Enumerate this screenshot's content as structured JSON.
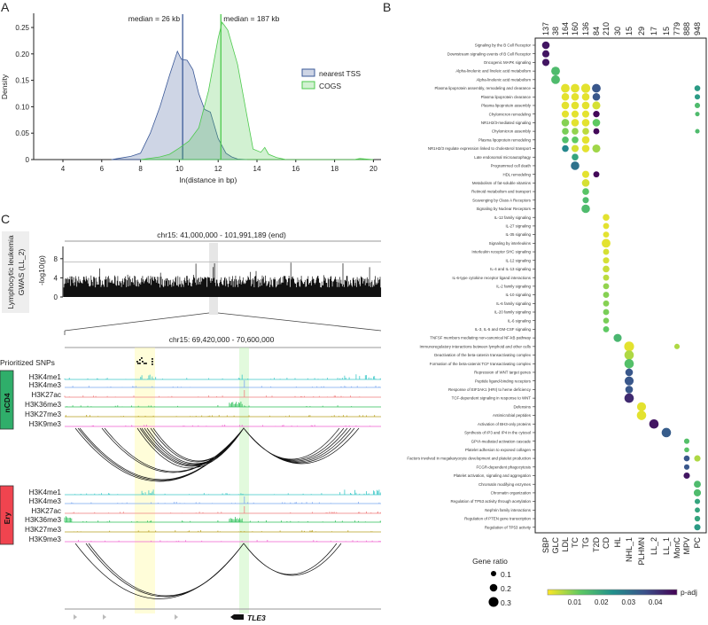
{
  "panels": {
    "a": "A",
    "b": "B",
    "c": "C"
  },
  "chart_data": [
    {
      "type": "area",
      "panel": "A",
      "title": "",
      "xlabel": "ln(distance in bp)",
      "ylabel": "Density",
      "xlim": [
        2.5,
        20
      ],
      "ylim": [
        0,
        0.27
      ],
      "xticks": [
        "4",
        "6",
        "8",
        "10",
        "12",
        "14",
        "16",
        "18",
        "20"
      ],
      "yticks": [
        "0",
        "0.05",
        "0.10",
        "0.15",
        "0.20",
        "0.25"
      ],
      "legend_position": "right",
      "series": [
        {
          "name": "nearest TSS",
          "color": "#3b5998",
          "median_ln": 10.17,
          "median_label": "median = 26 kb",
          "x": [
            6.5,
            7,
            7.5,
            8,
            8.5,
            9,
            9.5,
            9.9,
            10.1,
            10.4,
            10.7,
            11,
            11.3,
            11.6,
            12,
            12.4,
            12.7,
            13,
            13.5
          ],
          "y": [
            0,
            0.003,
            0.006,
            0.012,
            0.05,
            0.1,
            0.16,
            0.205,
            0.19,
            0.188,
            0.17,
            0.125,
            0.095,
            0.09,
            0.04,
            0.012,
            0.005,
            0.001,
            0
          ]
        },
        {
          "name": "COGS",
          "color": "#4cc94c",
          "median_ln": 12.14,
          "median_label": "median = 187 kb",
          "x": [
            8,
            9,
            9.5,
            10,
            10.5,
            11,
            11.5,
            12,
            12.2,
            12.5,
            13,
            13.5,
            13.8,
            14.2,
            14.4,
            14.6,
            15,
            15.5,
            19,
            19.3,
            20
          ],
          "y": [
            0,
            0.005,
            0.01,
            0.022,
            0.035,
            0.06,
            0.13,
            0.23,
            0.26,
            0.245,
            0.18,
            0.08,
            0.02,
            0.014,
            0.023,
            0.01,
            0.004,
            0,
            0,
            0.002,
            0
          ]
        }
      ]
    },
    {
      "type": "scatter",
      "panel": "B",
      "title": "",
      "columns": [
        "SBP",
        "GLC",
        "LDL",
        "TC",
        "TG",
        "T2D",
        "CD",
        "HL",
        "NHL_1",
        "PLHMN",
        "LL_2",
        "LL_1",
        "MonC",
        "MPV",
        "PC"
      ],
      "column_counts": [
        "137",
        "38",
        "164",
        "160",
        "136",
        "84",
        "210",
        "30",
        "15",
        "29",
        "17",
        "15",
        "779",
        "888",
        "948"
      ],
      "rows": [
        "Signaling by the B Cell Receptor",
        "Downstream signaling events of B Cell Receptor",
        "Oncogenic MAPK signaling",
        "Alpha-linolenic and linoleic acid metabolism",
        "Alpha-linolenic acid metabolism",
        "Plasma lipoprotein assembly, remodeling and clearance",
        "Plasma lipoprotein clearance",
        "Plasma lipoprotein assembly",
        "Chylomicron remodeling",
        "NR1H2/3-mediated signaling",
        "Chylomicron assembly",
        "Plasma lipoprotein remodeling",
        "NR1H2/3 regulate expression linked to cholesterol transport",
        "Late endosomal microautophagy",
        "Programmed cell death",
        "HDL remodeling",
        "Metabolism of fat-soluble vitamins",
        "Retinoid metabolism and transport",
        "Scavenging by Class A Receptors",
        "Signaling by Nuclear Receptors",
        "IL-12 family signaling",
        "IL-27 signaling",
        "IL-35 signaling",
        "Signaling by interleukins",
        "Interleukin receptor SHC signaling",
        "IL-12 signaling",
        "IL-4 and IL-13 signaling",
        "IL-6-type cytokine receptor ligand interactions",
        "IL-2 family signaling",
        "IL-10 signaling",
        "IL-6 family signaling",
        "IL-20 family signaling",
        "IL-6 signaling",
        "IL-3, IL-5 and GM-CSF signaling",
        "TNFSF members mediating non-canonical NF-kB pathway",
        "Immunoregulatory interactions between lymphoid and other cells",
        "Deactivation of the beta-catenin transactivating complex",
        "Formation of the beta-catenin:TCF transactivating complex",
        "Repression of WNT target genes",
        "Peptide ligand-binding receptors",
        "Response of EIF2AK1 (HRI) to heme deficiency",
        "TCF-dependent signaling in response to WNT",
        "Defensins",
        "Antimicrobial peptides",
        "Activation of BH3-only proteins",
        "Synthesis of IP3 and IP4 in the cytosol",
        "GPVI-mediated activation cascade",
        "Platelet adhesion to exposed collagen",
        "Factors involved in megakaryocyte development and platelet production",
        "FCGR-dependent phagocytosis",
        "Platelet activation, signaling and aggregation",
        "Chromatin modifying enzymes",
        "Chromatin organization",
        "Regulation of TP53 activity through acetylation",
        "Nephrin family interactions",
        "Regulation of PTEN gene transcription",
        "Regulation of TP53 activity"
      ],
      "points_format": [
        "row",
        "column",
        "gene_ratio",
        "p_adj"
      ],
      "points": [
        [
          0,
          0,
          0.2,
          0.045
        ],
        [
          1,
          0,
          0.18,
          0.045
        ],
        [
          2,
          0,
          0.18,
          0.045
        ],
        [
          3,
          1,
          0.25,
          0.015
        ],
        [
          4,
          1,
          0.25,
          0.015
        ],
        [
          5,
          2,
          0.25,
          0.002
        ],
        [
          5,
          3,
          0.25,
          0.002
        ],
        [
          5,
          4,
          0.27,
          0.002
        ],
        [
          5,
          5,
          0.25,
          0.035
        ],
        [
          5,
          14,
          0.12,
          0.022
        ],
        [
          6,
          2,
          0.2,
          0.002
        ],
        [
          6,
          3,
          0.2,
          0.002
        ],
        [
          6,
          4,
          0.2,
          0.002
        ],
        [
          6,
          5,
          0.2,
          0.035
        ],
        [
          6,
          14,
          0.1,
          0.022
        ],
        [
          7,
          2,
          0.2,
          0.002
        ],
        [
          7,
          3,
          0.2,
          0.002
        ],
        [
          7,
          4,
          0.2,
          0.002
        ],
        [
          7,
          5,
          0.22,
          0.003
        ],
        [
          7,
          14,
          0.1,
          0.015
        ],
        [
          8,
          2,
          0.18,
          0.002
        ],
        [
          8,
          3,
          0.18,
          0.002
        ],
        [
          8,
          4,
          0.18,
          0.002
        ],
        [
          8,
          5,
          0.15,
          0.047
        ],
        [
          8,
          14,
          0.06,
          0.015
        ],
        [
          9,
          2,
          0.2,
          0.009
        ],
        [
          9,
          3,
          0.2,
          0.002
        ],
        [
          9,
          4,
          0.2,
          0.002
        ],
        [
          9,
          5,
          0.2,
          0.012
        ],
        [
          10,
          2,
          0.16,
          0.01
        ],
        [
          10,
          3,
          0.16,
          0.008
        ],
        [
          10,
          4,
          0.16,
          0.005
        ],
        [
          10,
          5,
          0.13,
          0.047
        ],
        [
          10,
          14,
          0.06,
          0.015
        ],
        [
          11,
          2,
          0.16,
          0.014
        ],
        [
          11,
          3,
          0.16,
          0.012
        ],
        [
          11,
          4,
          0.2,
          0.002
        ],
        [
          12,
          2,
          0.16,
          0.026
        ],
        [
          12,
          3,
          0.18,
          0.003
        ],
        [
          12,
          4,
          0.2,
          0.002
        ],
        [
          12,
          5,
          0.22,
          0.007
        ],
        [
          13,
          3,
          0.16,
          0.02
        ],
        [
          14,
          3,
          0.24,
          0.03
        ],
        [
          15,
          4,
          0.18,
          0.002
        ],
        [
          15,
          5,
          0.13,
          0.047
        ],
        [
          16,
          4,
          0.2,
          0.003
        ],
        [
          17,
          4,
          0.16,
          0.013
        ],
        [
          18,
          4,
          0.14,
          0.015
        ],
        [
          19,
          4,
          0.24,
          0.015
        ],
        [
          20,
          6,
          0.16,
          0.002
        ],
        [
          21,
          6,
          0.13,
          0.002
        ],
        [
          22,
          6,
          0.13,
          0.002
        ],
        [
          23,
          6,
          0.25,
          0.002
        ],
        [
          24,
          6,
          0.13,
          0.003
        ],
        [
          25,
          6,
          0.14,
          0.003
        ],
        [
          26,
          6,
          0.16,
          0.004
        ],
        [
          27,
          6,
          0.13,
          0.005
        ],
        [
          28,
          6,
          0.13,
          0.008
        ],
        [
          29,
          6,
          0.13,
          0.009
        ],
        [
          30,
          6,
          0.13,
          0.009
        ],
        [
          31,
          6,
          0.13,
          0.01
        ],
        [
          32,
          6,
          0.12,
          0.01
        ],
        [
          33,
          6,
          0.13,
          0.012
        ],
        [
          34,
          7,
          0.22,
          0.016
        ],
        [
          35,
          8,
          0.3,
          0.002
        ],
        [
          35,
          12,
          0.1,
          0.006
        ],
        [
          36,
          8,
          0.28,
          0.006
        ],
        [
          37,
          8,
          0.28,
          0.014
        ],
        [
          38,
          8,
          0.2,
          0.035
        ],
        [
          39,
          8,
          0.26,
          0.035
        ],
        [
          40,
          8,
          0.2,
          0.035
        ],
        [
          41,
          8,
          0.28,
          0.042
        ],
        [
          42,
          9,
          0.26,
          0.002
        ],
        [
          43,
          9,
          0.28,
          0.002
        ],
        [
          44,
          10,
          0.28,
          0.045
        ],
        [
          45,
          11,
          0.28,
          0.034
        ],
        [
          46,
          13,
          0.1,
          0.014
        ],
        [
          47,
          13,
          0.08,
          0.013
        ],
        [
          48,
          13,
          0.12,
          0.035
        ],
        [
          48,
          14,
          0.14,
          0.006
        ],
        [
          49,
          13,
          0.1,
          0.035
        ],
        [
          50,
          13,
          0.14,
          0.045
        ],
        [
          51,
          14,
          0.17,
          0.015
        ],
        [
          52,
          14,
          0.18,
          0.015
        ],
        [
          53,
          14,
          0.1,
          0.02
        ],
        [
          54,
          14,
          0.09,
          0.02
        ],
        [
          55,
          14,
          0.11,
          0.02
        ],
        [
          56,
          14,
          0.14,
          0.022
        ]
      ],
      "size_legend": {
        "title": "Gene ratio",
        "values": [
          0.1,
          0.2,
          0.3
        ],
        "labels": [
          "0.1",
          "0.2",
          "0.3"
        ]
      },
      "color_legend": {
        "title": "p-adj",
        "range": [
          0,
          0.048
        ],
        "ticks": [
          0.01,
          0.02,
          0.03,
          0.04
        ],
        "tick_labels": [
          "0.01",
          "0.02",
          "0.03",
          "0.04"
        ]
      }
    }
  ],
  "panel_c": {
    "side_label_line1": "Lymphocytic leukemia",
    "side_label_line2": "GWAS (LL_2)",
    "gwas_title": "chr15: 41,000,000 - 101,991,189 (end)",
    "gwas_ylabel": "-log10(p)",
    "gwas_yticks": [
      "0",
      "4",
      "8"
    ],
    "gwas_significance": 7.3,
    "zoom_title": "chr15: 69,420,000 - 70,600,000",
    "snps_label": "Prioritized SNPs",
    "cell_types": [
      "nCD4",
      "Ery"
    ],
    "cell_colors": [
      "#2fae6a",
      "#f0444f"
    ],
    "tracks": [
      "H3K4me1",
      "H3K4me3",
      "H3K27ac",
      "H3K36me3",
      "H3K27me3",
      "H3K9me3"
    ],
    "track_colors": [
      "#3cc8c8",
      "#7aa6f0",
      "#f07f7f",
      "#2ec05a",
      "#b8a020",
      "#f060d0"
    ],
    "gene": "TLE3"
  }
}
